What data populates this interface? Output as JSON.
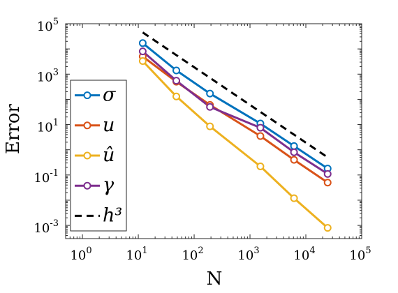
{
  "chart_data": {
    "type": "line",
    "xlabel": "N",
    "ylabel": "Error",
    "x_scale": "log",
    "y_scale": "log",
    "xlim": [
      0.5,
      100000
    ],
    "ylim": [
      0.0003,
      100000
    ],
    "x_ticks": [
      {
        "base": "10",
        "exp": "0",
        "value": 1
      },
      {
        "base": "10",
        "exp": "1",
        "value": 10
      },
      {
        "base": "10",
        "exp": "2",
        "value": 100
      },
      {
        "base": "10",
        "exp": "3",
        "value": 1000
      },
      {
        "base": "10",
        "exp": "4",
        "value": 10000
      },
      {
        "base": "10",
        "exp": "5",
        "value": 100000
      }
    ],
    "y_ticks": [
      {
        "base": "10",
        "exp": "-3",
        "value": 0.001
      },
      {
        "base": "10",
        "exp": "-1",
        "value": 0.1
      },
      {
        "base": "10",
        "exp": "1",
        "value": 10
      },
      {
        "base": "10",
        "exp": "3",
        "value": 1000
      },
      {
        "base": "10",
        "exp": "5",
        "value": 100000
      }
    ],
    "legend_position": "left",
    "grid": false,
    "x": [
      12,
      48,
      192,
      1536,
      6144,
      24576
    ],
    "series": [
      {
        "name": "σ",
        "color": "#0072BD",
        "marker": "circle",
        "style": "solid",
        "values": [
          17000,
          1400,
          170,
          11,
          1.4,
          0.18
        ]
      },
      {
        "name": "u",
        "color": "#D95319",
        "marker": "circle",
        "style": "solid",
        "values": [
          5000,
          500,
          60,
          3.5,
          0.4,
          0.05
        ]
      },
      {
        "name": "û",
        "color": "#EDB120",
        "marker": "circle",
        "style": "solid",
        "values": [
          3300,
          130,
          8.5,
          0.22,
          0.012,
          0.0008
        ]
      },
      {
        "name": "γ",
        "color": "#7E2F8E",
        "marker": "circle",
        "style": "solid",
        "values": [
          8000,
          550,
          50,
          7.5,
          0.8,
          0.11
        ]
      },
      {
        "name": "h³",
        "color": "#000000",
        "marker": "none",
        "style": "dashed",
        "x": [
          12,
          24576
        ],
        "values": [
          45000,
          0.5
        ]
      }
    ]
  }
}
